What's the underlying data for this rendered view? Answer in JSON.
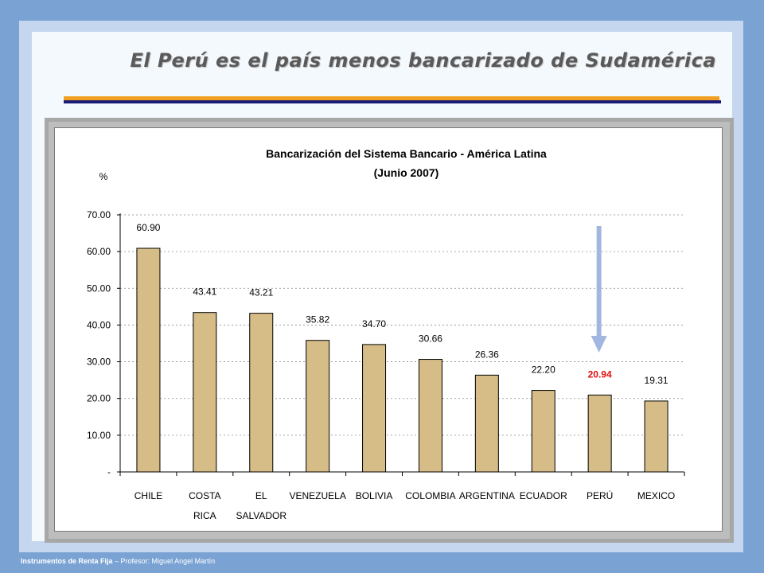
{
  "slide": {
    "title": "El Perú es el país menos bancarizado de Sudamérica",
    "footer_course": "Instrumentos de Renta Fija",
    "footer_rest": " – Profesor: Miguel Angel Martín"
  },
  "colors": {
    "bar_fill": "#d6bc87",
    "bar_stroke": "#000000",
    "highlight_label": "#e01010",
    "arrow": "#a3b6e0",
    "title_rule_orange": "#f0a020",
    "title_rule_navy": "#1c1c78"
  },
  "chart_data": {
    "type": "bar",
    "title": "Bancarización del Sistema Bancario - América Latina",
    "subtitle": "(Junio 2007)",
    "ylabel": "%",
    "ylim": [
      0,
      70
    ],
    "yticks": [
      "-",
      "10.00",
      "20.00",
      "30.00",
      "40.00",
      "50.00",
      "60.00",
      "70.00"
    ],
    "categories": [
      [
        "CHILE"
      ],
      [
        "COSTA",
        "RICA"
      ],
      [
        "EL",
        "SALVADOR"
      ],
      [
        "VENEZUELA"
      ],
      [
        "BOLIVIA"
      ],
      [
        "COLOMBIA"
      ],
      [
        "ARGENTINA"
      ],
      [
        "ECUADOR"
      ],
      [
        "PERÚ"
      ],
      [
        "MEXICO"
      ]
    ],
    "values": [
      60.9,
      43.41,
      43.21,
      35.82,
      34.7,
      30.66,
      26.36,
      22.2,
      20.94,
      19.31
    ],
    "value_labels": [
      "60.90",
      "43.41",
      "43.21",
      "35.82",
      "34.70",
      "30.66",
      "26.36",
      "22.20",
      "20.94",
      "19.31"
    ],
    "highlight_category": "PERÚ",
    "grid": "horizontal dashed",
    "legend": "none",
    "annotation": "downward arrow pointing to PERÚ"
  }
}
